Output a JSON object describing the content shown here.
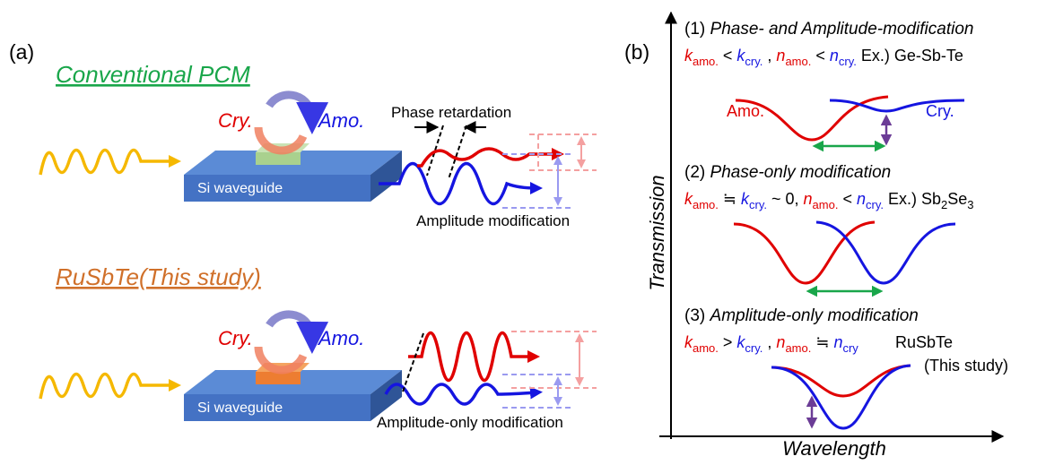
{
  "panel_a": {
    "label": "(a)",
    "conventional": {
      "title": "Conventional PCM",
      "cry": "Cry.",
      "amo": "Amo.",
      "waveguide": "Si waveguide",
      "phase_label": "Phase retardation",
      "amplitude_label": "Amplitude modification"
    },
    "this_study": {
      "title": "RuSbTe(This study)",
      "cry": "Cry.",
      "amo": "Amo.",
      "waveguide": "Si waveguide",
      "amplitude_label": "Amplitude-only modification"
    }
  },
  "panel_b": {
    "label": "(b)",
    "y_axis": "Transmission",
    "x_axis": "Wavelength",
    "cases": [
      {
        "number": "(1)",
        "title": "Phase- and Amplitude-modification",
        "condition": [
          "k",
          "amo.",
          " < ",
          "k",
          "cry.",
          " , ",
          "n",
          "amo.",
          " < ",
          "n",
          "cry.",
          " Ex.) Ge-Sb-Te"
        ],
        "amo_label": "Amo.",
        "cry_label": "Cry."
      },
      {
        "number": "(2)",
        "title": "Phase-only modification",
        "condition": [
          "k",
          "amo.",
          " ≒ ",
          "k",
          "cry.",
          " ~ 0, ",
          "n",
          "amo.",
          " < ",
          "n",
          "cry.",
          " Ex.) Sb",
          "2",
          "Se",
          "3"
        ]
      },
      {
        "number": "(3)",
        "title": "Amplitude-only modification",
        "condition": [
          "k",
          "amo.",
          " > ",
          "k",
          "cry.",
          " , ",
          "n",
          "amo.",
          " ≒ ",
          "n",
          "cry"
        ],
        "material": "RuSbTe",
        "note": "(This study)"
      }
    ]
  }
}
